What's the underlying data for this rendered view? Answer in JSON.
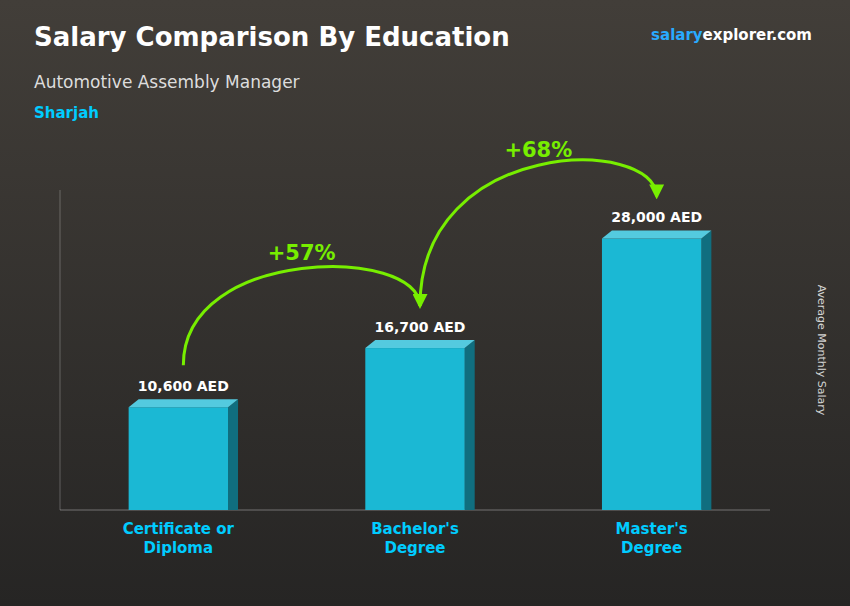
{
  "chart_data": {
    "type": "bar",
    "title": "Salary Comparison By Education",
    "subtitle": "Automotive Assembly Manager",
    "city": "Sharjah",
    "website": [
      "salary",
      "explorer.com"
    ],
    "ylabel": "Average Monthly Salary",
    "categories": [
      "Certificate or\nDiploma",
      "Bachelor's\nDegree",
      "Master's\nDegree"
    ],
    "values": [
      10600,
      16700,
      28000
    ],
    "value_labels": [
      "10,600 AED",
      "16,700 AED",
      "28,000 AED"
    ],
    "data_labels": true,
    "annotations": [
      "+57%",
      "+68%"
    ],
    "color": "#1BB8D4",
    "ylim": [
      0,
      33000
    ],
    "tick_labels": "x"
  }
}
